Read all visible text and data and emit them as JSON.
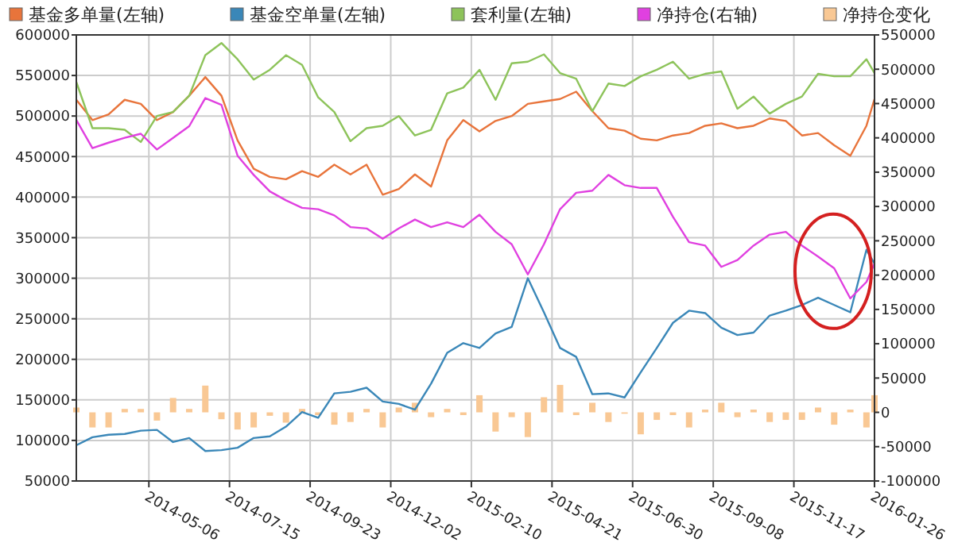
{
  "chart_data": {
    "type": "line",
    "x": [
      "2014-03-04",
      "2014-03-18",
      "2014-04-01",
      "2014-04-15",
      "2014-04-29",
      "2014-05-13",
      "2014-05-27",
      "2014-06-10",
      "2014-06-24",
      "2014-07-08",
      "2014-07-22",
      "2014-08-05",
      "2014-08-19",
      "2014-09-02",
      "2014-09-16",
      "2014-09-30",
      "2014-10-14",
      "2014-10-28",
      "2014-11-11",
      "2014-11-25",
      "2014-12-09",
      "2014-12-23",
      "2015-01-06",
      "2015-01-20",
      "2015-02-03",
      "2015-02-17",
      "2015-03-03",
      "2015-03-17",
      "2015-03-31",
      "2015-04-14",
      "2015-04-28",
      "2015-05-12",
      "2015-05-26",
      "2015-06-09",
      "2015-06-23",
      "2015-07-07",
      "2015-07-21",
      "2015-08-04",
      "2015-08-18",
      "2015-09-01",
      "2015-09-15",
      "2015-09-29",
      "2015-10-13",
      "2015-10-27",
      "2015-11-10",
      "2015-11-24",
      "2015-12-08",
      "2015-12-22",
      "2016-01-05",
      "2016-01-19",
      "2016-01-26"
    ],
    "series": [
      {
        "name": "基金多单量(左轴)",
        "color": "#e8743b",
        "values": [
          520000,
          495000,
          502000,
          520000,
          515000,
          495000,
          505000,
          525000,
          548000,
          525000,
          470000,
          435000,
          425000,
          422000,
          432000,
          425000,
          440000,
          428000,
          440000,
          403000,
          410000,
          428000,
          413000,
          470000,
          495000,
          481000,
          494000,
          500000,
          515000,
          518000,
          521000,
          530000,
          506000,
          485000,
          482000,
          472000,
          470000,
          476000,
          479000,
          488000,
          491000,
          485000,
          488000,
          497000,
          494000,
          476000,
          479000,
          464000,
          451000,
          488000,
          521000
        ]
      },
      {
        "name": "基金空单量(左轴)",
        "color": "#3a87b8",
        "values": [
          94000,
          104000,
          107000,
          108000,
          112000,
          113000,
          98000,
          103000,
          87000,
          88000,
          91000,
          103000,
          105000,
          117000,
          135000,
          128000,
          158000,
          160000,
          165000,
          148000,
          145000,
          138000,
          170000,
          208000,
          220000,
          214000,
          232000,
          240000,
          300000,
          258000,
          214000,
          203000,
          157000,
          158000,
          153000,
          184000,
          214000,
          245000,
          260000,
          257000,
          239000,
          230000,
          233000,
          254000,
          260000,
          267000,
          276000,
          267000,
          258000,
          335000,
          318000
        ]
      },
      {
        "name": "套利量(左轴)",
        "color": "#8dc35a",
        "values": [
          542000,
          485000,
          485000,
          483000,
          468000,
          500000,
          505000,
          525000,
          575000,
          590000,
          570000,
          545000,
          557000,
          575000,
          563000,
          523000,
          505000,
          469000,
          485000,
          488000,
          500000,
          476000,
          483000,
          528000,
          535000,
          557000,
          520000,
          565000,
          567000,
          576000,
          553000,
          546000,
          506000,
          540000,
          537000,
          549000,
          557000,
          567000,
          546000,
          552000,
          555000,
          509000,
          524000,
          503000,
          515000,
          524000,
          552000,
          549000,
          549000,
          570000,
          553000
        ]
      },
      {
        "name": "净持仓(右轴)",
        "color": "#e040e0",
        "axis": "y2",
        "values": [
          426000,
          385000,
          393000,
          400000,
          406000,
          383000,
          400000,
          417000,
          458000,
          448000,
          374000,
          346000,
          322000,
          309000,
          298000,
          296000,
          287000,
          270000,
          268000,
          253000,
          268000,
          281000,
          270000,
          277000,
          270000,
          288000,
          263000,
          245000,
          201000,
          245000,
          296000,
          320000,
          323000,
          346000,
          331000,
          327000,
          327000,
          285000,
          248000,
          243000,
          212000,
          222000,
          243000,
          259000,
          263000,
          243000,
          227000,
          210000,
          166000,
          190000,
          217000
        ]
      },
      {
        "name": "净持仓变化",
        "color": "#f9c894",
        "type": "bar",
        "axis": "y2",
        "values": [
          7000,
          -22000,
          -22000,
          5000,
          5000,
          -12000,
          21000,
          5000,
          39000,
          -10000,
          -25000,
          -22000,
          -5000,
          -15000,
          5000,
          -4000,
          -18000,
          -14000,
          5000,
          -22000,
          7000,
          14000,
          -7000,
          5000,
          -4000,
          25000,
          -28000,
          -7000,
          -36000,
          22000,
          40000,
          -4000,
          14000,
          -14000,
          -2000,
          -32000,
          -11000,
          -4000,
          -22000,
          4000,
          14000,
          -7000,
          4000,
          -14000,
          -11000,
          -11000,
          7000,
          -18000,
          4000,
          -22000,
          25000
        ]
      }
    ],
    "xlim": [
      "2014-03-04",
      "2016-01-26"
    ],
    "xticks": [
      "2014-05-06",
      "2014-07-15",
      "2014-09-23",
      "2014-12-02",
      "2015-02-10",
      "2015-04-21",
      "2015-06-30",
      "2015-09-08",
      "2015-11-17",
      "2016-01-26"
    ],
    "ylim": [
      50000,
      600000
    ],
    "yticks": [
      50000,
      100000,
      150000,
      200000,
      250000,
      300000,
      350000,
      400000,
      450000,
      500000,
      550000,
      600000
    ],
    "y2lim": [
      -100000,
      550000
    ],
    "y2ticks": [
      -100000,
      -50000,
      0,
      50000,
      100000,
      150000,
      200000,
      250000,
      300000,
      350000,
      400000,
      450000,
      500000,
      550000
    ],
    "grid": true,
    "legend": "top"
  }
}
